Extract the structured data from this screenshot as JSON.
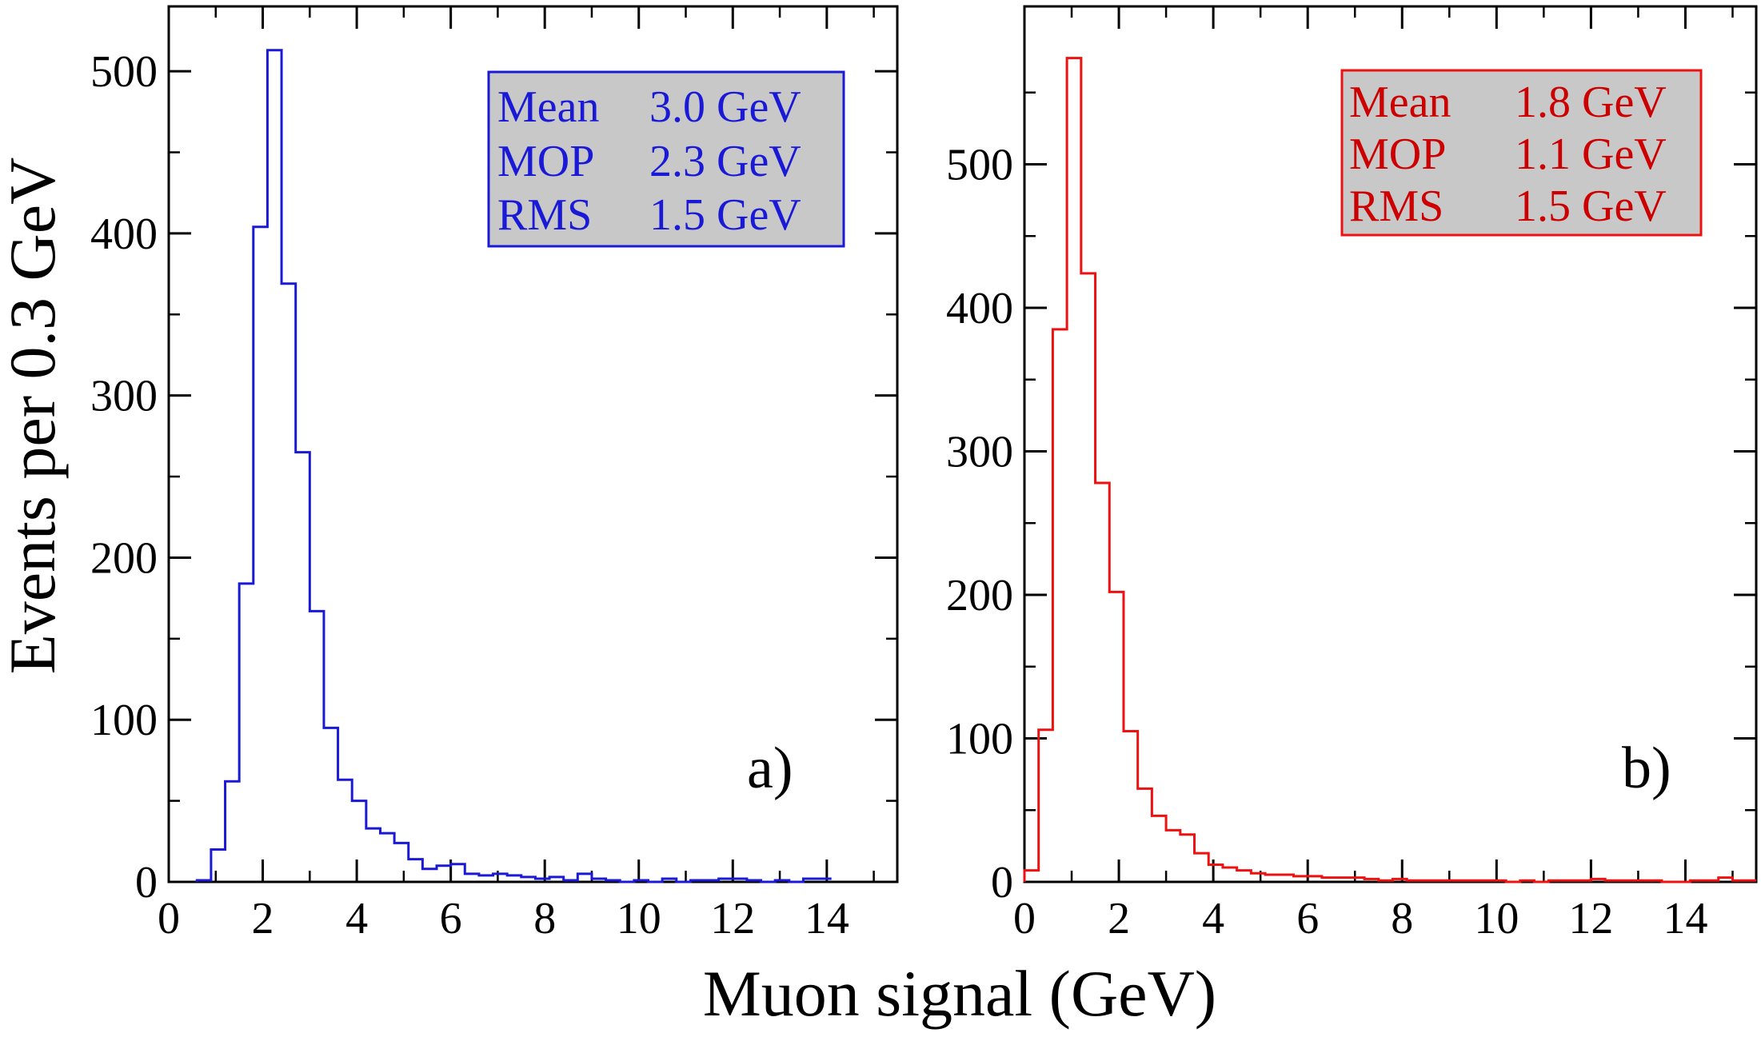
{
  "figure": {
    "xlabel": "Muon signal (GeV)",
    "ylabel": "Events per 0.3 GeV"
  },
  "chart_data": [
    {
      "type": "histogram",
      "panel_label": "a)",
      "color": "#1a1ad6",
      "box_text_color": "#1a1ad6",
      "xlim": [
        0,
        15.5
      ],
      "ylim": [
        0,
        540
      ],
      "xticks": [
        "0",
        "2",
        "4",
        "6",
        "8",
        "10",
        "12",
        "14"
      ],
      "yticks": [
        "0",
        "100",
        "200",
        "300",
        "400",
        "500"
      ],
      "bin_width": 0.3,
      "bin_start": 0.6,
      "values": [
        1,
        20,
        62,
        184,
        404,
        513,
        369,
        265,
        167,
        95,
        63,
        50,
        33,
        30,
        24,
        14,
        8,
        10,
        11,
        5,
        4,
        5,
        4,
        3,
        2,
        3,
        1,
        5,
        2,
        1,
        0,
        1,
        0,
        2,
        0,
        1,
        1,
        2,
        2,
        1,
        0,
        1,
        0,
        2,
        2
      ],
      "stats": [
        {
          "label": "Mean",
          "value": "3.0 GeV"
        },
        {
          "label": "MOP",
          "value": "2.3 GeV"
        },
        {
          "label": "RMS",
          "value": "1.5 GeV"
        }
      ]
    },
    {
      "type": "histogram",
      "panel_label": "b)",
      "color": "#ee1111",
      "box_text_color": "#cc0000",
      "xlim": [
        0,
        15.5
      ],
      "ylim": [
        0,
        610
      ],
      "xticks": [
        "0",
        "2",
        "4",
        "6",
        "8",
        "10",
        "12",
        "14"
      ],
      "yticks": [
        "0",
        "100",
        "200",
        "300",
        "400",
        "500"
      ],
      "bin_width": 0.3,
      "bin_start": 0.0,
      "values": [
        8,
        106,
        385,
        574,
        424,
        278,
        202,
        105,
        65,
        46,
        36,
        33,
        20,
        12,
        10,
        8,
        6,
        5,
        5,
        4,
        4,
        3,
        3,
        3,
        2,
        1,
        2,
        1,
        1,
        1,
        1,
        1,
        1,
        1,
        0,
        1,
        0,
        1,
        1,
        1,
        2,
        1,
        1,
        1,
        1,
        0,
        0,
        1,
        1,
        3,
        1,
        1
      ],
      "stats": [
        {
          "label": "Mean",
          "value": "1.8 GeV"
        },
        {
          "label": "MOP",
          "value": "1.1 GeV"
        },
        {
          "label": "RMS",
          "value": "1.5 GeV"
        }
      ]
    }
  ]
}
